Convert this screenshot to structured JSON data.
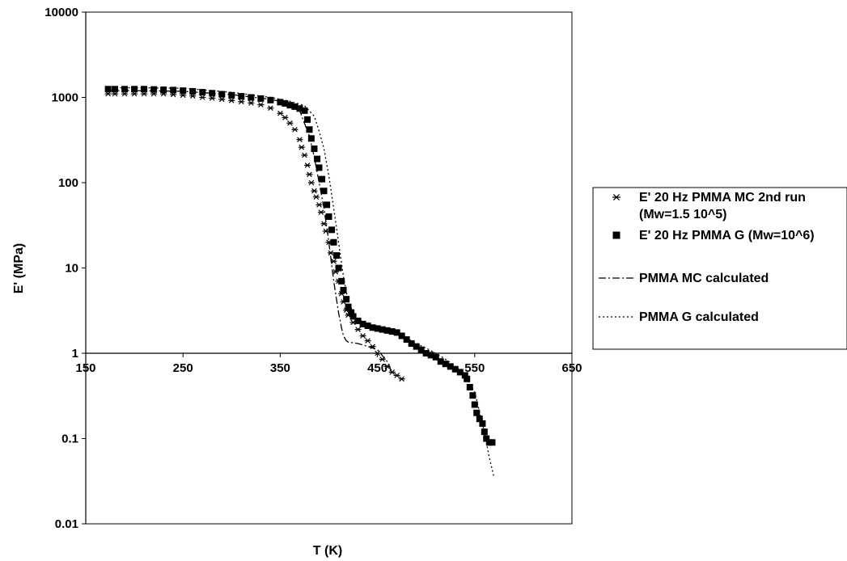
{
  "chart_data": {
    "type": "scatter",
    "xlabel": "T (K)",
    "ylabel": "E' (MPa)",
    "xlim": [
      150,
      650
    ],
    "ylim": [
      0.01,
      10000
    ],
    "yscale": "log",
    "grid": false,
    "legend_position": "right",
    "x_ticks": [
      "150",
      "250",
      "350",
      "450",
      "550",
      "650"
    ],
    "y_ticks": [
      "10000",
      "1000",
      "100",
      "10",
      "1",
      "0.1",
      "0.01"
    ],
    "series": [
      {
        "name": "E' 20 Hz PMMA MC 2nd run",
        "name_line2": "(Mw=1.5 10^5)",
        "marker": "star",
        "x": [
          173,
          180,
          190,
          200,
          210,
          220,
          230,
          240,
          250,
          260,
          270,
          280,
          290,
          300,
          310,
          320,
          330,
          340,
          350,
          355,
          360,
          365,
          370,
          372,
          375,
          378,
          380,
          382,
          385,
          387,
          390,
          392,
          395,
          397,
          400,
          402,
          405,
          407,
          410,
          413,
          415,
          418,
          420,
          425,
          430,
          435,
          440,
          445,
          450,
          455,
          460,
          465,
          470,
          475
        ],
        "y": [
          1100,
          1100,
          1100,
          1100,
          1100,
          1100,
          1100,
          1080,
          1060,
          1040,
          1000,
          980,
          950,
          920,
          890,
          860,
          820,
          750,
          650,
          580,
          500,
          420,
          320,
          260,
          210,
          160,
          125,
          100,
          80,
          68,
          55,
          45,
          33,
          27,
          20,
          15,
          12,
          9,
          7,
          5,
          4,
          3.2,
          2.8,
          2.3,
          1.9,
          1.6,
          1.4,
          1.2,
          1.0,
          0.85,
          0.7,
          0.6,
          0.55,
          0.5
        ]
      },
      {
        "name": "E' 20 Hz PMMA G (Mw=10^6)",
        "marker": "square",
        "x": [
          173,
          180,
          190,
          200,
          210,
          220,
          230,
          240,
          250,
          260,
          270,
          280,
          290,
          300,
          310,
          320,
          330,
          340,
          350,
          355,
          360,
          365,
          370,
          375,
          378,
          380,
          382,
          385,
          388,
          390,
          393,
          395,
          398,
          400,
          403,
          405,
          408,
          410,
          413,
          415,
          418,
          420,
          423,
          425,
          430,
          435,
          440,
          445,
          450,
          455,
          460,
          465,
          470,
          475,
          480,
          485,
          490,
          495,
          500,
          505,
          510,
          515,
          520,
          525,
          530,
          535,
          540,
          542,
          545,
          548,
          550,
          552,
          555,
          558,
          560,
          562,
          565,
          568
        ],
        "y": [
          1250,
          1250,
          1250,
          1250,
          1250,
          1240,
          1230,
          1220,
          1200,
          1180,
          1150,
          1120,
          1090,
          1060,
          1030,
          1000,
          970,
          930,
          880,
          850,
          810,
          780,
          740,
          700,
          550,
          420,
          330,
          250,
          190,
          150,
          110,
          80,
          55,
          40,
          28,
          20,
          14,
          10,
          7,
          5.5,
          4.3,
          3.5,
          3,
          2.7,
          2.4,
          2.2,
          2.1,
          2.0,
          1.95,
          1.9,
          1.85,
          1.8,
          1.75,
          1.6,
          1.45,
          1.3,
          1.2,
          1.1,
          1.0,
          0.95,
          0.9,
          0.8,
          0.75,
          0.7,
          0.65,
          0.6,
          0.55,
          0.5,
          0.4,
          0.32,
          0.25,
          0.2,
          0.17,
          0.15,
          0.12,
          0.1,
          0.09,
          0.09
        ]
      },
      {
        "name": "PMMA MC calculated",
        "line": "dashdot",
        "x": [
          173,
          200,
          250,
          300,
          340,
          360,
          370,
          380,
          385,
          390,
          395,
          400,
          405,
          410,
          413,
          415,
          418,
          420,
          430,
          440,
          450,
          460,
          465
        ],
        "y": [
          1200,
          1200,
          1180,
          1080,
          950,
          850,
          700,
          350,
          200,
          100,
          50,
          20,
          7,
          3,
          2,
          1.6,
          1.4,
          1.35,
          1.3,
          1.2,
          1.1,
          0.8,
          0.6
        ]
      },
      {
        "name": "PMMA G calculated",
        "line": "dotted",
        "x": [
          173,
          200,
          250,
          300,
          340,
          360,
          375,
          385,
          390,
          395,
          400,
          405,
          410,
          415,
          420,
          425,
          430,
          440,
          450,
          460,
          470,
          480,
          490,
          500,
          510,
          520,
          530,
          540,
          550,
          560,
          565,
          570
        ],
        "y": [
          1300,
          1300,
          1280,
          1150,
          1000,
          900,
          800,
          600,
          400,
          250,
          120,
          50,
          20,
          8,
          4,
          3,
          2.5,
          2.2,
          2.0,
          1.9,
          1.75,
          1.5,
          1.3,
          1.15,
          1.0,
          0.85,
          0.7,
          0.55,
          0.35,
          0.12,
          0.06,
          0.035
        ]
      }
    ]
  }
}
